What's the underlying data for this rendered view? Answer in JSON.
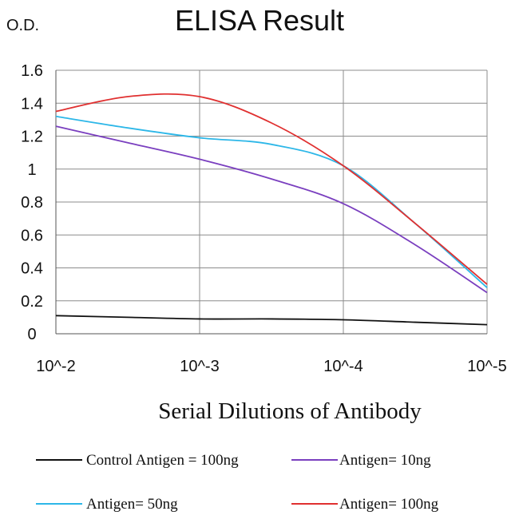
{
  "chart_data": {
    "type": "line",
    "title": "ELISA Result",
    "ylabel": "O.D.",
    "xlabel": "Serial Dilutions of Antibody",
    "categories": [
      "10^-2",
      "10^-3",
      "10^-4",
      "10^-5"
    ],
    "yticks": [
      "0",
      "0.2",
      "0.4",
      "0.6",
      "0.8",
      "1",
      "1.2",
      "1.4",
      "1.6"
    ],
    "ylim": [
      0,
      1.6
    ],
    "grid": true,
    "legend_position": "bottom",
    "series": [
      {
        "name": "Control Antigen = 100ng",
        "color": "#111111",
        "x": [
          0,
          0.5,
          1,
          1.5,
          2,
          2.5,
          3
        ],
        "values": [
          0.11,
          0.1,
          0.09,
          0.09,
          0.085,
          0.07,
          0.055
        ]
      },
      {
        "name": "Antigen= 10ng",
        "color": "#7a3fbf",
        "x": [
          0,
          0.5,
          1,
          1.5,
          2,
          2.5,
          3
        ],
        "values": [
          1.26,
          1.16,
          1.06,
          0.94,
          0.79,
          0.54,
          0.25
        ]
      },
      {
        "name": "Antigen= 50ng",
        "color": "#2db7e8",
        "x": [
          0,
          0.5,
          1,
          1.5,
          2,
          2.5,
          3
        ],
        "values": [
          1.32,
          1.25,
          1.19,
          1.15,
          1.02,
          0.67,
          0.28
        ]
      },
      {
        "name": "Antigen= 100ng",
        "color": "#e03030",
        "x": [
          0,
          0.5,
          1,
          1.5,
          2,
          2.5,
          3
        ],
        "values": [
          1.35,
          1.44,
          1.44,
          1.28,
          1.02,
          0.67,
          0.3
        ]
      }
    ]
  }
}
